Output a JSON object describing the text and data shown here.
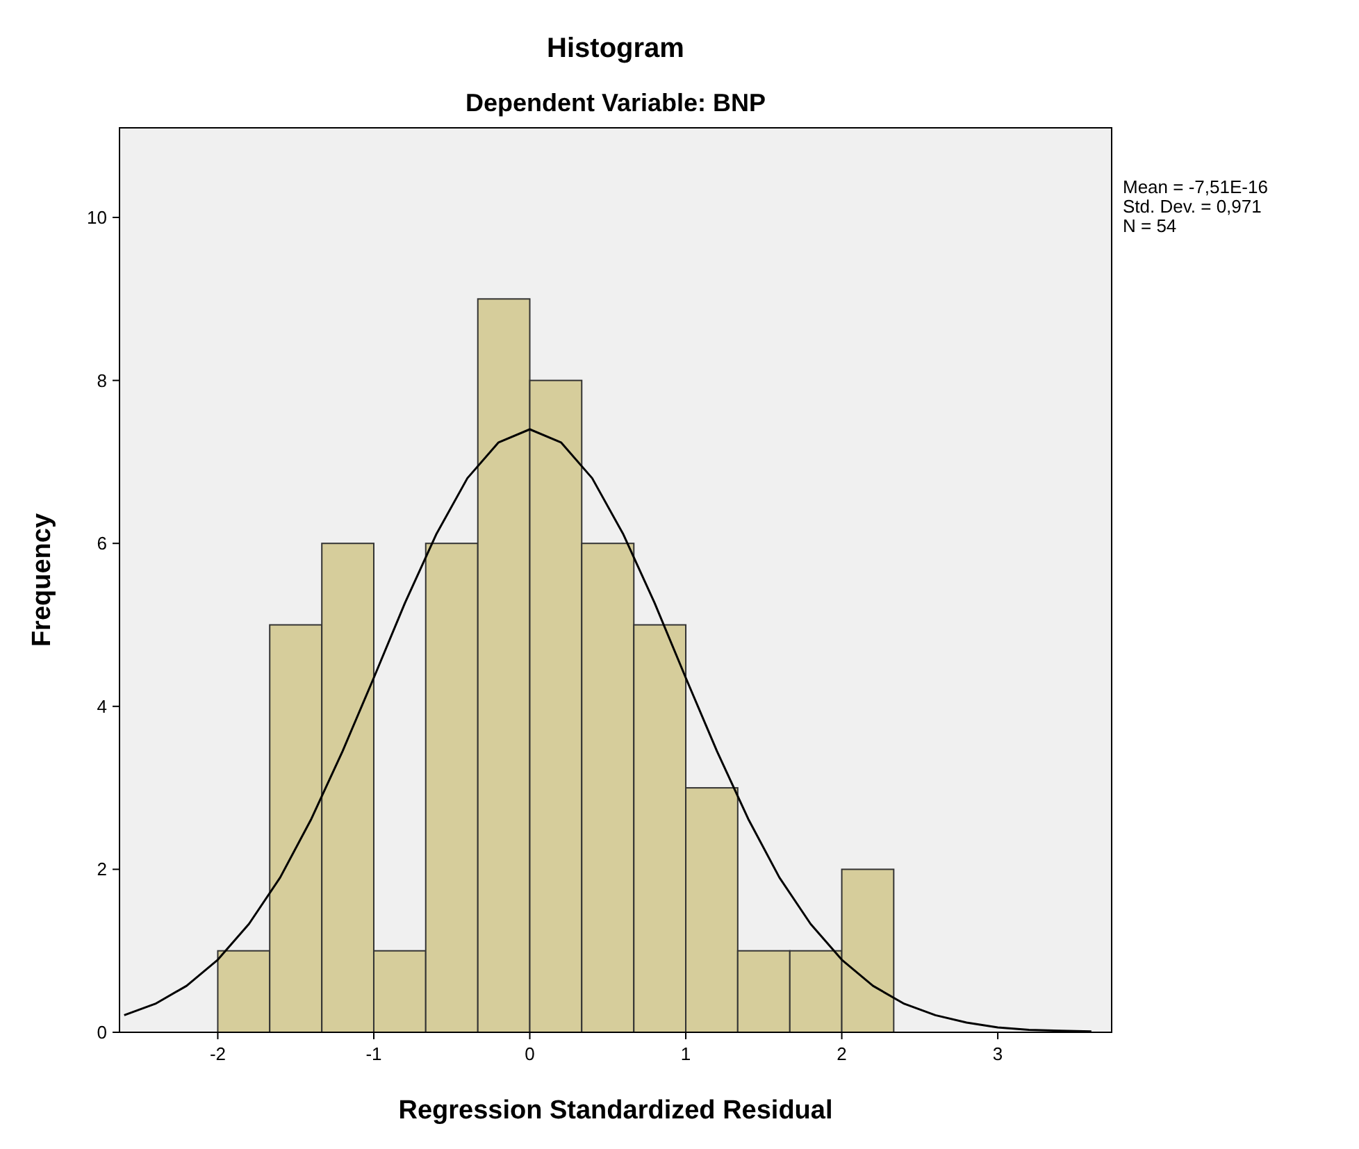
{
  "chart_data": {
    "type": "histogram",
    "title": "Histogram",
    "subtitle": "Dependent Variable: BNP",
    "xlabel": "Regression Standardized Residual",
    "ylabel": "Frequency",
    "bins": [
      -2,
      -1.667,
      -1.333,
      -1,
      -0.667,
      -0.333,
      0,
      0.333,
      0.667,
      1,
      1.333,
      1.667,
      2,
      2.333
    ],
    "series": [
      {
        "color": "#d6cd9b",
        "values": [
          1,
          5,
          6,
          1,
          6,
          9,
          8,
          6,
          5,
          3,
          1,
          1,
          2
        ]
      },
      {
        "type": "line",
        "color": "#000000",
        "x": [
          -2.6,
          -2.4,
          -2.2,
          -2,
          -1.8,
          -1.6,
          -1.4,
          -1.2,
          -1,
          -0.8,
          -0.6,
          -0.4,
          -0.2,
          0,
          0.2,
          0.4,
          0.6,
          0.8,
          1,
          1.2,
          1.4,
          1.6,
          1.8,
          2,
          2.2,
          2.4,
          2.6,
          2.8,
          3,
          3.2,
          3.4,
          3.6
        ],
        "values": [
          0.21,
          0.35,
          0.57,
          0.89,
          1.33,
          1.9,
          2.62,
          3.45,
          4.35,
          5.27,
          6.11,
          6.8,
          7.24,
          7.4,
          7.24,
          6.8,
          6.11,
          5.27,
          4.35,
          3.45,
          2.62,
          1.9,
          1.33,
          0.89,
          0.57,
          0.35,
          0.21,
          0.12,
          0.06,
          0.03,
          0.02,
          0.01
        ]
      }
    ],
    "marker": "none",
    "xlim": [
      -2.63,
      3.73
    ],
    "ylim": [
      0,
      11.1
    ],
    "xticks": [
      -2,
      -1,
      0,
      1,
      2,
      3
    ],
    "yticks": [
      0,
      2,
      4,
      6,
      8,
      10
    ],
    "annotations": [
      "Mean = -7,51E-16",
      "Std. Dev. = 0,971",
      "N = 54"
    ]
  }
}
